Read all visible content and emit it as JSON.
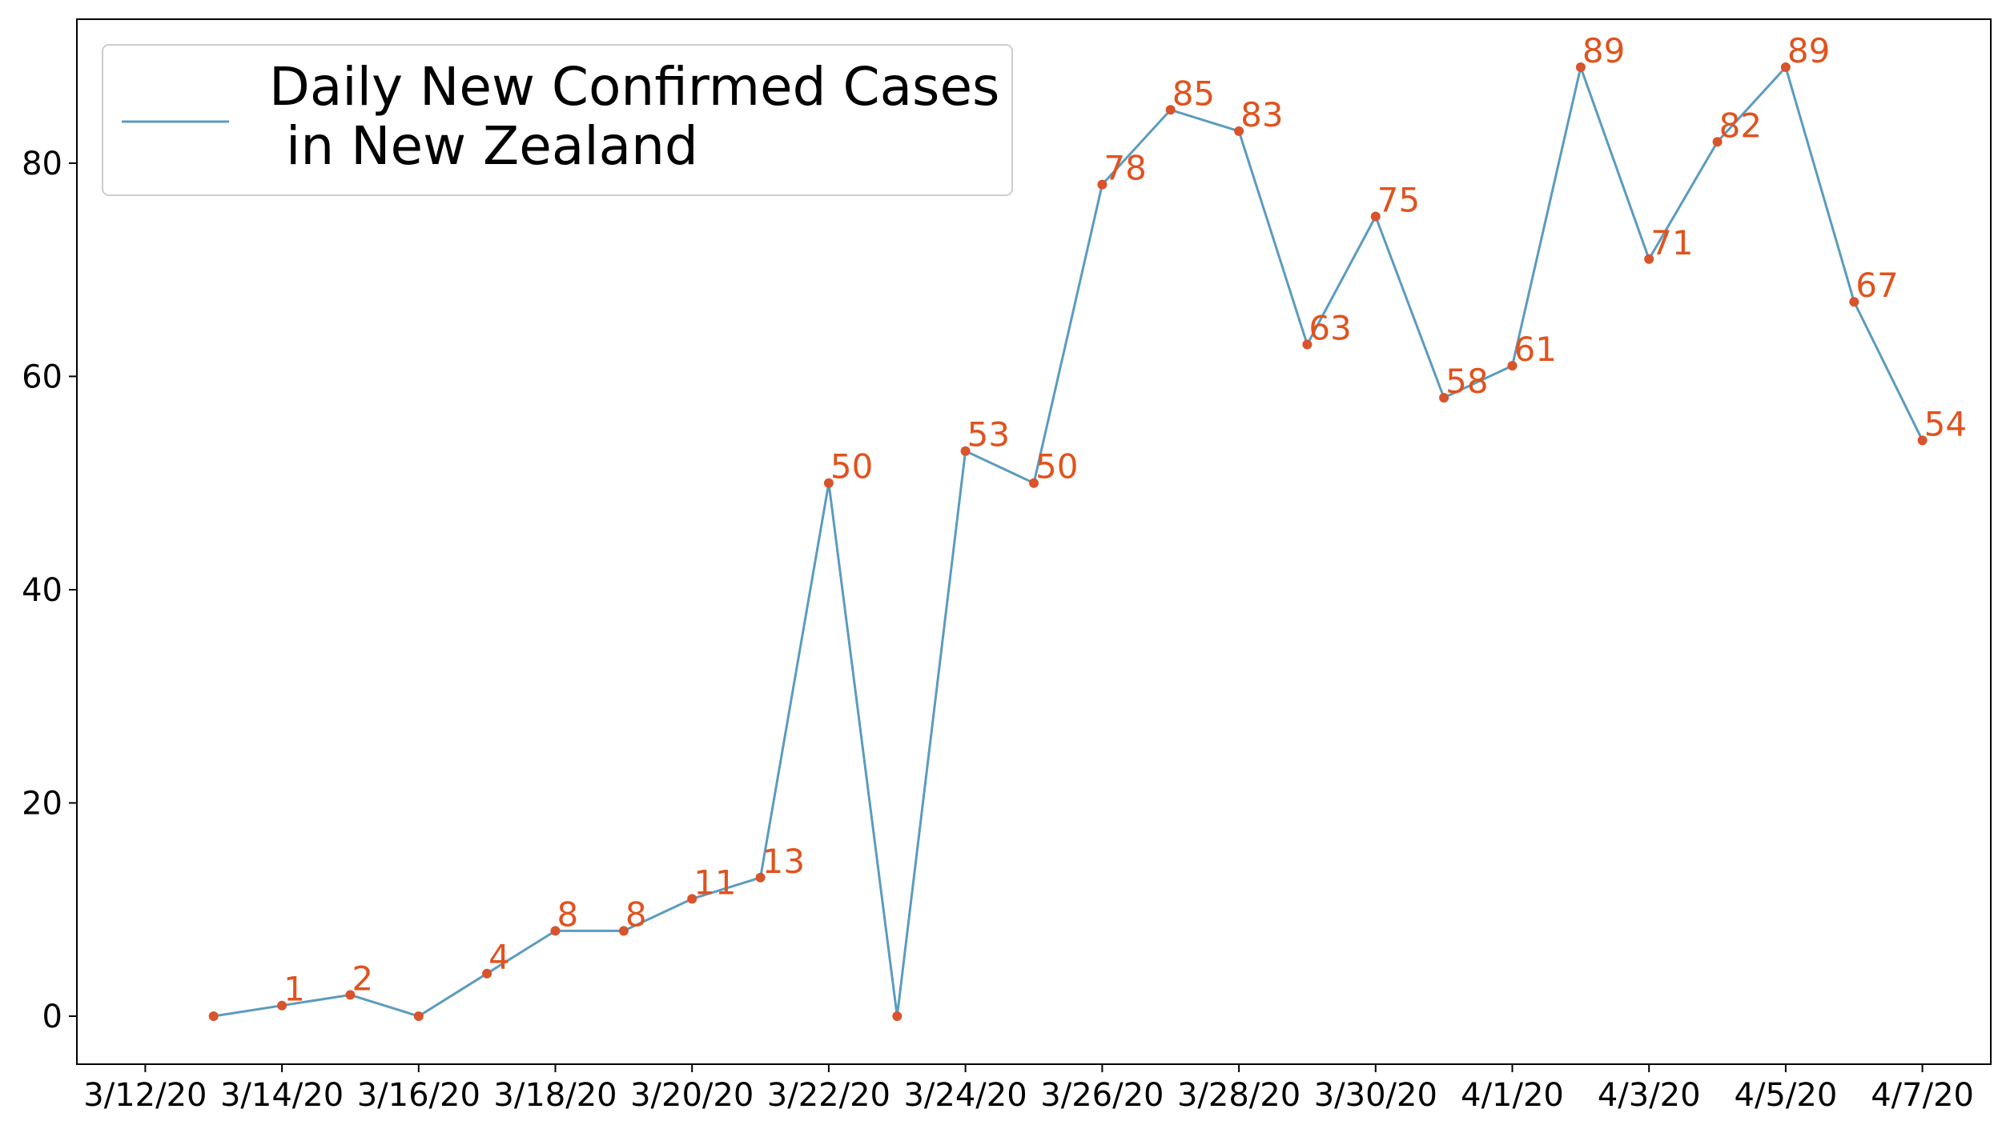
{
  "chart_data": {
    "type": "line",
    "x": [
      "3/13/20",
      "3/14/20",
      "3/15/20",
      "3/16/20",
      "3/17/20",
      "3/18/20",
      "3/19/20",
      "3/20/20",
      "3/21/20",
      "3/22/20",
      "3/23/20",
      "3/24/20",
      "3/25/20",
      "3/26/20",
      "3/27/20",
      "3/28/20",
      "3/29/20",
      "3/30/20",
      "3/31/20",
      "4/1/20",
      "4/2/20",
      "4/3/20",
      "4/4/20",
      "4/5/20",
      "4/6/20",
      "4/7/20"
    ],
    "series": [
      {
        "name": "Daily New Confirmed Cases\n in New Zealand",
        "values": [
          0,
          1,
          2,
          0,
          4,
          8,
          8,
          11,
          13,
          50,
          0,
          53,
          50,
          78,
          85,
          83,
          63,
          75,
          58,
          61,
          89,
          71,
          82,
          89,
          67,
          54
        ]
      }
    ],
    "data_labels": [
      "",
      "1",
      "2",
      "",
      "4",
      "8",
      "8",
      "11",
      "13",
      "50",
      "",
      "53",
      "50",
      "78",
      "85",
      "83",
      "63",
      "75",
      "58",
      "61",
      "89",
      "71",
      "82",
      "89",
      "67",
      "54"
    ],
    "x_ticks": [
      "3/12/20",
      "3/14/20",
      "3/16/20",
      "3/18/20",
      "3/20/20",
      "3/22/20",
      "3/24/20",
      "3/26/20",
      "3/28/20",
      "3/30/20",
      "4/1/20",
      "4/3/20",
      "4/5/20",
      "4/7/20"
    ],
    "y_ticks": [
      0,
      20,
      40,
      60,
      80
    ],
    "ylim": [
      -4.5,
      93.5
    ],
    "xlim": [
      "3/11/20",
      "4/8/20"
    ],
    "title": "",
    "xlabel": "",
    "ylabel": "",
    "grid": false,
    "legend": {
      "position": "top-left",
      "lines": [
        "Daily New Confirmed Cases",
        " in New Zealand"
      ]
    },
    "colors": {
      "line": "#5b9bbf",
      "marker": "#d9532b",
      "label": "#e0531e"
    }
  }
}
